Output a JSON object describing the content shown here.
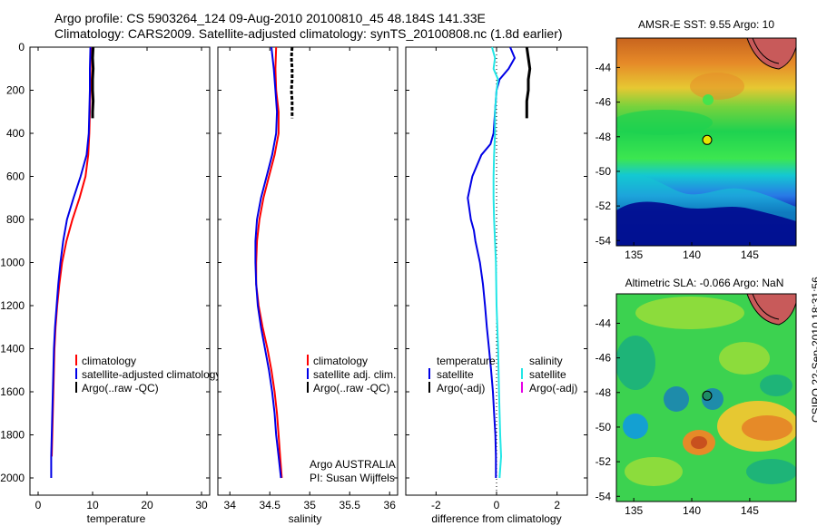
{
  "header": {
    "line1": "Argo profile: CS 5903264_124 09-Aug-2010 20100810_45 48.184S 141.33E",
    "line2": "Climatology: CARS2009. Satellite-adjusted climatology: synTS_20100808.nc (1.8d earlier)"
  },
  "stamp": "CSIRO 22-Sep-2010 18:31:56",
  "colors": {
    "red": "#ff0000",
    "blue": "#0000e6",
    "black": "#000000",
    "cyan": "#22e6e6",
    "magenta": "#e600e6"
  },
  "chart_data": [
    {
      "type": "line",
      "name": "temperature-profile",
      "xlabel": "temperature",
      "ylabel": "",
      "xlim": [
        -1.5,
        31.5
      ],
      "ylim": [
        2080,
        0
      ],
      "xticks": [
        "0",
        "10",
        "20",
        "30"
      ],
      "yticks": [
        "0",
        "200",
        "400",
        "600",
        "800",
        "1000",
        "1200",
        "1400",
        "1600",
        "1800",
        "2000"
      ],
      "legend": [
        "climatology",
        "satellite-adjusted climatology",
        "Argo(..raw -QC)"
      ],
      "series": [
        {
          "name": "climatology",
          "color": "red",
          "depth": [
            0,
            100,
            200,
            300,
            400,
            500,
            600,
            700,
            800,
            900,
            1000,
            1100,
            1200,
            1300,
            1400,
            1500,
            1600,
            1700,
            1800,
            1900
          ],
          "values": [
            9.7,
            9.6,
            9.6,
            9.5,
            9.4,
            9.2,
            8.7,
            7.6,
            6.3,
            5.2,
            4.4,
            3.9,
            3.5,
            3.2,
            3.0,
            2.9,
            2.8,
            2.7,
            2.6,
            2.5
          ]
        },
        {
          "name": "satellite-adjusted climatology",
          "color": "blue",
          "depth": [
            0,
            100,
            200,
            300,
            400,
            500,
            600,
            700,
            800,
            900,
            1000,
            1100,
            1200,
            1300,
            1400,
            1500,
            1600,
            1700,
            1800,
            1900,
            2000
          ],
          "values": [
            9.6,
            9.5,
            9.5,
            9.4,
            9.3,
            8.9,
            7.8,
            6.5,
            5.3,
            4.6,
            4.1,
            3.7,
            3.4,
            3.1,
            2.9,
            2.8,
            2.7,
            2.6,
            2.5,
            2.4,
            2.4
          ]
        },
        {
          "name": "Argo(..raw -QC)",
          "color": "black",
          "depth": [
            0,
            50,
            100,
            150,
            200,
            250,
            300,
            330
          ],
          "values": [
            10.1,
            10.0,
            10.1,
            10.0,
            10.0,
            10.1,
            10.0,
            10.0
          ]
        }
      ]
    },
    {
      "type": "line",
      "name": "salinity-profile",
      "xlabel": "salinity",
      "ylabel": "",
      "xlim": [
        33.85,
        36.1
      ],
      "ylim": [
        2080,
        0
      ],
      "xticks": [
        "34",
        "34.5",
        "35",
        "35.5",
        "36"
      ],
      "legend": [
        "climatology",
        "satellite adj. clim.",
        "Argo(..raw -QC)"
      ],
      "annotation": [
        "Argo AUSTRALIA",
        "PI: Susan Wijffels"
      ],
      "series": [
        {
          "name": "climatology",
          "color": "red",
          "depth": [
            0,
            100,
            200,
            300,
            400,
            500,
            600,
            700,
            800,
            900,
            1000,
            1100,
            1200,
            1300,
            1400,
            1500,
            1600,
            1700,
            1800,
            1900,
            2000
          ],
          "values": [
            34.58,
            34.57,
            34.58,
            34.61,
            34.61,
            34.56,
            34.49,
            34.42,
            34.37,
            34.34,
            34.33,
            34.33,
            34.36,
            34.41,
            34.47,
            34.52,
            34.56,
            34.59,
            34.61,
            34.63,
            34.65
          ]
        },
        {
          "name": "satellite adj. clim.",
          "color": "blue",
          "depth": [
            0,
            100,
            200,
            300,
            400,
            500,
            600,
            700,
            800,
            900,
            1000,
            1100,
            1200,
            1300,
            1400,
            1500,
            1600,
            1700,
            1800,
            1900,
            2000
          ],
          "values": [
            34.52,
            34.55,
            34.57,
            34.59,
            34.58,
            34.53,
            34.46,
            34.39,
            34.34,
            34.32,
            34.32,
            34.33,
            34.35,
            34.39,
            34.44,
            34.49,
            34.53,
            34.56,
            34.58,
            34.61,
            34.64
          ]
        },
        {
          "name": "Argo(..raw -QC)",
          "color": "black",
          "depth": [
            0,
            50,
            100,
            150,
            200,
            250,
            300,
            330
          ],
          "values": [
            34.78,
            34.77,
            34.78,
            34.78,
            34.77,
            34.78,
            34.78,
            34.78
          ]
        }
      ]
    },
    {
      "type": "line",
      "name": "difference-profile",
      "xlabel": "difference from climatology",
      "ylabel": "",
      "xlim": [
        -3,
        3
      ],
      "ylim": [
        2080,
        0
      ],
      "xticks": [
        "-2",
        "0",
        "2"
      ],
      "legend_left_title": "temperature",
      "legend_right_title": "salinity",
      "legend_left": [
        "satellite",
        "Argo(-adj)"
      ],
      "legend_right": [
        "satellite",
        "Argo(-adj)"
      ],
      "series": [
        {
          "name": "temperature satellite",
          "color": "blue",
          "depth": [
            0,
            50,
            100,
            150,
            200,
            300,
            400,
            450,
            500,
            600,
            700,
            800,
            850,
            900,
            1000,
            1100,
            1200,
            1300,
            1400,
            1500,
            1600,
            1700,
            1800,
            1900,
            2000
          ],
          "values": [
            0.45,
            0.6,
            0.4,
            0.1,
            0.0,
            -0.05,
            -0.1,
            -0.2,
            -0.5,
            -0.8,
            -0.95,
            -0.85,
            -0.75,
            -0.7,
            -0.55,
            -0.45,
            -0.38,
            -0.32,
            -0.25,
            -0.18,
            -0.12,
            -0.08,
            -0.04,
            -0.02,
            -0.02
          ]
        },
        {
          "name": "salinity satellite",
          "color": "cyan",
          "depth": [
            0,
            50,
            100,
            150,
            200,
            300,
            400,
            500,
            600,
            700,
            800,
            900,
            1000,
            1200,
            1400,
            1600,
            1800,
            1900,
            2000
          ],
          "values": [
            -0.15,
            -0.05,
            -0.1,
            0.05,
            0.0,
            -0.05,
            -0.05,
            -0.08,
            -0.1,
            -0.1,
            -0.08,
            -0.05,
            -0.02,
            0.0,
            0.05,
            0.08,
            0.12,
            0.15,
            0.1
          ]
        },
        {
          "name": "temperature Argo(-adj)",
          "color": "black",
          "depth": [
            0,
            50,
            100,
            150,
            200,
            250,
            300,
            330
          ],
          "values": [
            1.0,
            1.05,
            1.1,
            1.05,
            1.05,
            1.0,
            1.0,
            1.0
          ]
        }
      ]
    },
    {
      "type": "heatmap",
      "name": "amsr-e-sst-map",
      "title": "AMSR-E SST: 9.55 Argo: 10",
      "xlim": [
        133.5,
        149
      ],
      "ylim": [
        -54.3,
        -42.3
      ],
      "xticks": [
        "135",
        "140",
        "145"
      ],
      "yticks": [
        "-44",
        "-46",
        "-48",
        "-50",
        "-52",
        "-54"
      ],
      "marker": {
        "lon": 141.33,
        "lat": -48.184
      }
    },
    {
      "type": "heatmap",
      "name": "altimetric-sla-map",
      "title": "Altimetric SLA: -0.066 Argo: NaN",
      "xlim": [
        133.5,
        149
      ],
      "ylim": [
        -54.3,
        -42.3
      ],
      "xticks": [
        "135",
        "140",
        "145"
      ],
      "yticks": [
        "-44",
        "-46",
        "-48",
        "-50",
        "-52",
        "-54"
      ],
      "marker": {
        "lon": 141.33,
        "lat": -48.184
      }
    }
  ]
}
